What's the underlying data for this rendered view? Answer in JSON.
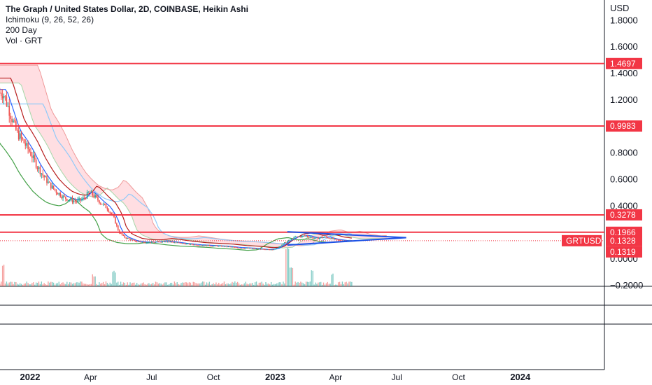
{
  "legend": {
    "title": "The Graph / United States Dollar, 2D, COINBASE, Heikin Ashi",
    "lines": [
      "Ichimoku (9, 26, 52, 26)",
      "200 Day",
      "Vol · GRT"
    ]
  },
  "axis": {
    "currency": "USD",
    "y_ticks": [
      1.8,
      1.6,
      1.4,
      1.2,
      0.8,
      0.6,
      0.4,
      0.0,
      -0.2
    ],
    "y_tick_labels": [
      "1.8000",
      "1.6000",
      "1.4000",
      "1.2000",
      "0.8000",
      "0.6000",
      "0.4000",
      "0.0000",
      "−0.2000"
    ],
    "x_ticks": [
      {
        "label": "2022",
        "day": 0,
        "bold": true
      },
      {
        "label": "Apr",
        "day": 90,
        "bold": false
      },
      {
        "label": "Jul",
        "day": 181,
        "bold": false
      },
      {
        "label": "Oct",
        "day": 273,
        "bold": false
      },
      {
        "label": "2023",
        "day": 365,
        "bold": true
      },
      {
        "label": "Apr",
        "day": 455,
        "bold": false
      },
      {
        "label": "Jul",
        "day": 546,
        "bold": false
      },
      {
        "label": "Oct",
        "day": 638,
        "bold": false
      },
      {
        "label": "2024",
        "day": 730,
        "bold": true
      }
    ]
  },
  "colors": {
    "level_line": "#f23645",
    "level_label_bg": "#f23645",
    "ticker_bg": "#f23645",
    "candle_up": "#26a69a",
    "candle_down": "#ef5350",
    "conversion": "#2962ff",
    "base": "#b71c1c",
    "lagging": "#43a047",
    "cloud_up": "#a5d6a7",
    "cloud_down": "#ffcdd2",
    "ma200": "#90caf9",
    "triangle": "#1e53e5"
  },
  "chart_data": {
    "type": "candlestick",
    "title": "The Graph / United States Dollar, 2D, COINBASE, Heikin Ashi",
    "x_unit": "days since 2022-01-01",
    "ylim": [
      -0.2,
      1.85
    ],
    "levels": [
      {
        "value": 1.4697,
        "label": "1.4697"
      },
      {
        "value": 0.9983,
        "label": "0.9983"
      },
      {
        "value": 0.3278,
        "label": "0.3278"
      },
      {
        "value": 0.1966,
        "label": "0.1966"
      }
    ],
    "last_price": {
      "ticker": "GRTUSD",
      "value": 0.1328,
      "label": "0.1328"
    },
    "secondary_price": {
      "value": 0.1319,
      "label": "0.1319"
    },
    "price_path": [
      [
        -40,
        1.25
      ],
      [
        -30,
        1.1
      ],
      [
        -20,
        0.95
      ],
      [
        -10,
        0.88
      ],
      [
        0,
        0.8
      ],
      [
        10,
        0.7
      ],
      [
        20,
        0.62
      ],
      [
        30,
        0.55
      ],
      [
        40,
        0.5
      ],
      [
        50,
        0.46
      ],
      [
        60,
        0.44
      ],
      [
        70,
        0.43
      ],
      [
        80,
        0.45
      ],
      [
        88,
        0.5
      ],
      [
        95,
        0.47
      ],
      [
        105,
        0.42
      ],
      [
        115,
        0.38
      ],
      [
        125,
        0.3
      ],
      [
        132,
        0.2
      ],
      [
        140,
        0.16
      ],
      [
        155,
        0.13
      ],
      [
        170,
        0.12
      ],
      [
        185,
        0.12
      ],
      [
        200,
        0.13
      ],
      [
        215,
        0.12
      ],
      [
        230,
        0.11
      ],
      [
        250,
        0.1
      ],
      [
        270,
        0.095
      ],
      [
        290,
        0.09
      ],
      [
        310,
        0.08
      ],
      [
        330,
        0.075
      ],
      [
        350,
        0.065
      ],
      [
        365,
        0.07
      ],
      [
        380,
        0.12
      ],
      [
        395,
        0.16
      ],
      [
        410,
        0.17
      ],
      [
        425,
        0.15
      ],
      [
        440,
        0.16
      ],
      [
        455,
        0.14
      ],
      [
        470,
        0.13
      ],
      [
        480,
        0.1328
      ]
    ],
    "triangle": {
      "upper": [
        [
          383,
          0.2
        ],
        [
          560,
          0.156
        ]
      ],
      "lower": [
        [
          383,
          0.1
        ],
        [
          560,
          0.156
        ]
      ]
    },
    "volume_spikes": [
      [
        -40,
        6
      ],
      [
        95,
        3
      ],
      [
        125,
        4
      ],
      [
        383,
        12
      ],
      [
        389,
        6
      ],
      [
        420,
        5
      ],
      [
        450,
        3
      ]
    ]
  }
}
